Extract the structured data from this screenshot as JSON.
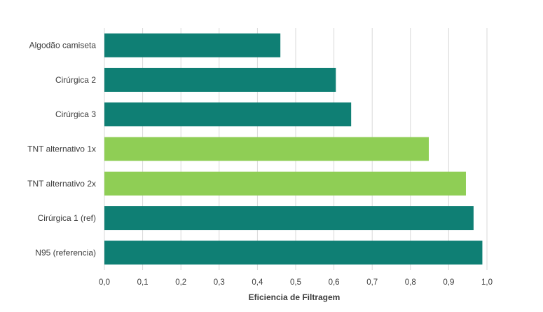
{
  "chart_data": {
    "type": "bar",
    "orientation": "horizontal",
    "categories": [
      "Algodão camiseta",
      "Cirúrgica 2",
      "Cirúrgica 3",
      "TNT alternativo 1x",
      "TNT alternativo 2x",
      "Cirúrgica 1 (ref)",
      "N95 (referencia)"
    ],
    "values": [
      0.46,
      0.605,
      0.645,
      0.848,
      0.945,
      0.965,
      0.988
    ],
    "bar_colors": [
      "#0f7f74",
      "#0f7f74",
      "#0f7f74",
      "#8fce55",
      "#8fce55",
      "#0f7f74",
      "#0f7f74"
    ],
    "xlabel": "Eficiencia de Filtragem",
    "ylabel": "",
    "xlim": [
      0,
      1.0
    ],
    "xticks": [
      0.0,
      0.1,
      0.2,
      0.3,
      0.4,
      0.5,
      0.6,
      0.7,
      0.8,
      0.9,
      1.0
    ],
    "xtick_labels": [
      "0,0",
      "0,1",
      "0,2",
      "0,3",
      "0,4",
      "0,5",
      "0,6",
      "0,7",
      "0,8",
      "0,9",
      "1,0"
    ],
    "grid": true,
    "legend": "none"
  }
}
